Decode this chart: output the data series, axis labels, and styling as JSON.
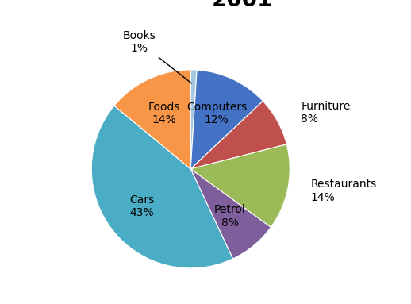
{
  "categories": [
    "Books",
    "Computers",
    "Furniture",
    "Restaurants",
    "Petrol",
    "Cars",
    "Foods"
  ],
  "values": [
    1,
    12,
    8,
    14,
    8,
    43,
    14
  ],
  "colors": [
    "#A5C8E1",
    "#4472C4",
    "#C0504D",
    "#9BBB59",
    "#7F5F9B",
    "#4BACC6",
    "#F79646"
  ],
  "startangle": 90,
  "title_fontsize": 20,
  "label_fontsize": 10,
  "bg_color": "#ffffff",
  "inside_labels": [
    "Computers",
    "Cars",
    "Foods",
    "Petrol"
  ],
  "outside_right_labels": [
    "Furniture",
    "Restaurants"
  ],
  "outside_annotated_labels": [
    "Books"
  ]
}
